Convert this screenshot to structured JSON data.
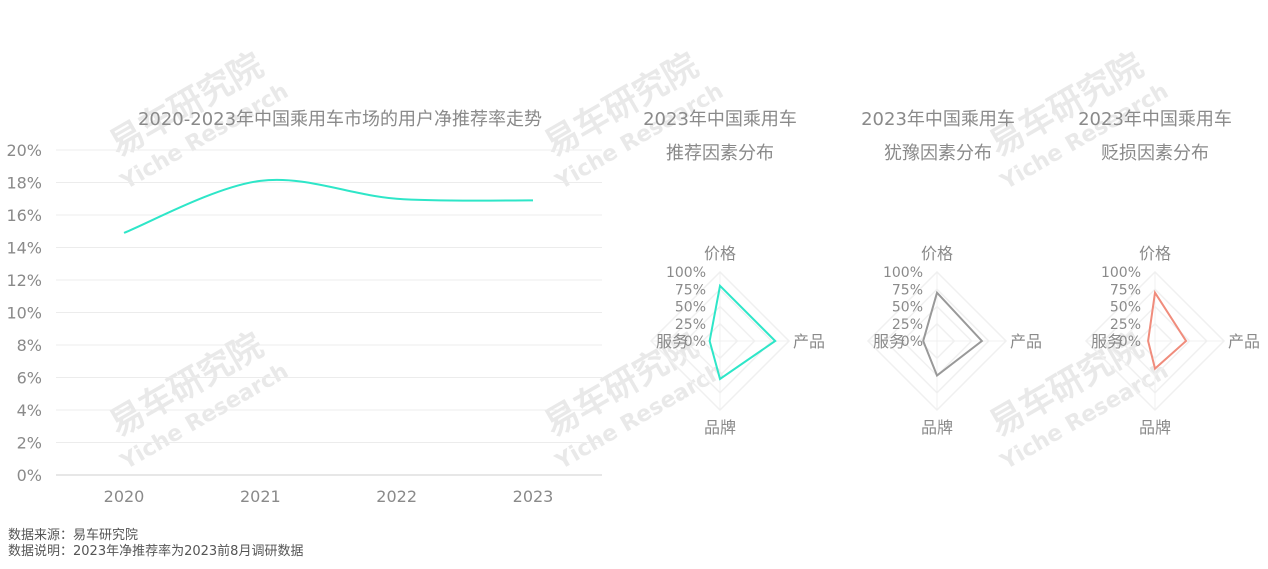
{
  "watermark": {
    "cn": "易车研究院",
    "en": "Yiche Research"
  },
  "footnotes": {
    "source": "数据来源：易车研究院",
    "note": "数据说明：2023年净推荐率为2023前8月调研数据"
  },
  "chart_data": [
    {
      "type": "line",
      "title": "2020-2023年中国乘用车市场的用户净推荐率走势",
      "x": [
        "2020",
        "2021",
        "2022",
        "2023"
      ],
      "series": [
        {
          "values": [
            14.9,
            18.1,
            17.0,
            16.9
          ]
        }
      ],
      "ylim": [
        0,
        20
      ],
      "yticks": [
        "0%",
        "2%",
        "4%",
        "6%",
        "8%",
        "10%",
        "12%",
        "14%",
        "16%",
        "18%",
        "20%"
      ],
      "grid": true,
      "color": "#2ee6c8"
    },
    {
      "type": "radar",
      "title_line1": "2023年中国乘用车",
      "title_line2": "推荐因素分布",
      "axes": [
        "价格",
        "产品",
        "品牌",
        "服务"
      ],
      "values": [
        80,
        80,
        55,
        15
      ],
      "rticks": [
        "0%",
        "25%",
        "50%",
        "75%",
        "100%"
      ],
      "color": "#2ee6c8"
    },
    {
      "type": "radar",
      "title_line1": "2023年中国乘用车",
      "title_line2": "犹豫因素分布",
      "axes": [
        "价格",
        "产品",
        "品牌",
        "服务"
      ],
      "values": [
        70,
        65,
        50,
        20
      ],
      "rticks": [
        "0%",
        "25%",
        "50%",
        "75%",
        "100%"
      ],
      "color": "#999999"
    },
    {
      "type": "radar",
      "title_line1": "2023年中国乘用车",
      "title_line2": "贬损因素分布",
      "axes": [
        "价格",
        "产品",
        "品牌",
        "服务"
      ],
      "values": [
        70,
        45,
        40,
        10
      ],
      "rticks": [
        "0%",
        "25%",
        "50%",
        "75%",
        "100%"
      ],
      "color": "#f08c7c"
    }
  ]
}
